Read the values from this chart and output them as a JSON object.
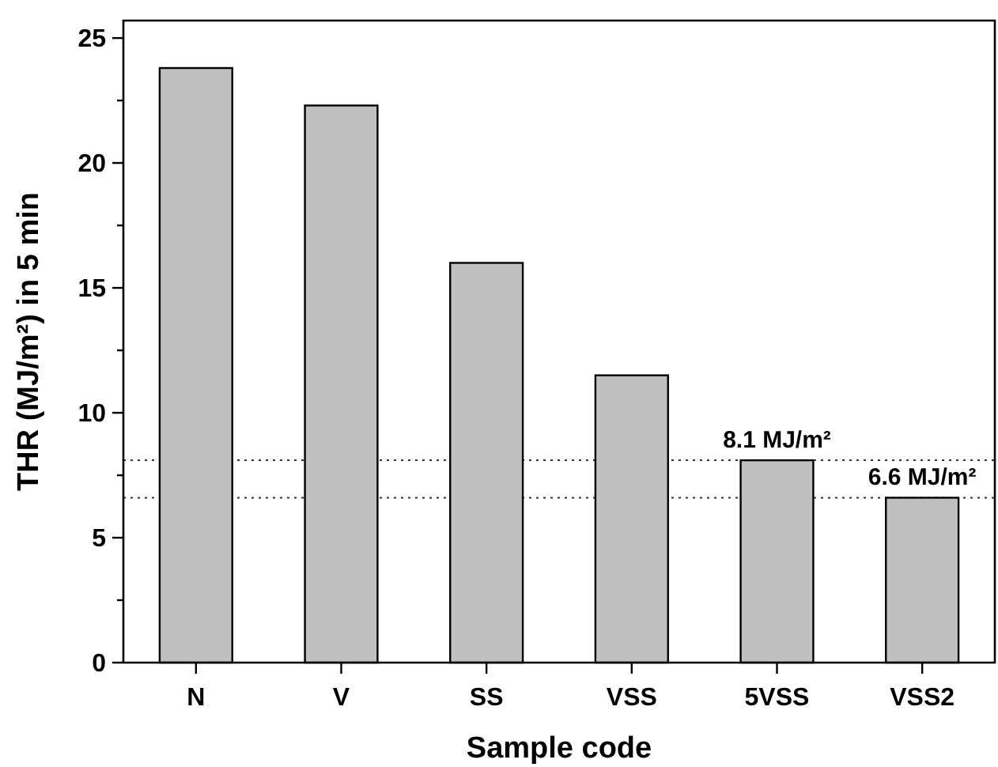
{
  "chart_data": {
    "type": "bar",
    "xlabel": "Sample code",
    "ylabel": "THR (MJ/m²) in 5 min",
    "categories": [
      "N",
      "V",
      "SS",
      "VSS",
      "5VSS",
      "VSS2"
    ],
    "values": [
      23.8,
      22.3,
      16.0,
      11.5,
      8.1,
      6.6
    ],
    "color": "#c0c0c0",
    "ylim": [
      0,
      25.7
    ],
    "yticks": [
      0,
      {
        "value": 2.5,
        "label": null
      },
      5,
      {
        "value": 7.5,
        "label": null
      },
      10,
      {
        "value": 12.5,
        "label": null
      },
      15,
      {
        "value": 17.5,
        "label": null
      },
      20,
      {
        "value": 22.5,
        "label": null
      },
      25
    ],
    "ref_lines": [
      {
        "axis": "y",
        "value": 8.1,
        "line_style": "dotted"
      },
      {
        "axis": "y",
        "value": 6.6,
        "line_style": "dotted"
      }
    ],
    "annotations": [
      {
        "text": "8.1 MJ/m²",
        "x": "5VSS",
        "y": 8.1
      },
      {
        "text": "6.6 MJ/m²",
        "x": "VSS2",
        "y": 6.6
      }
    ],
    "grid": false
  }
}
